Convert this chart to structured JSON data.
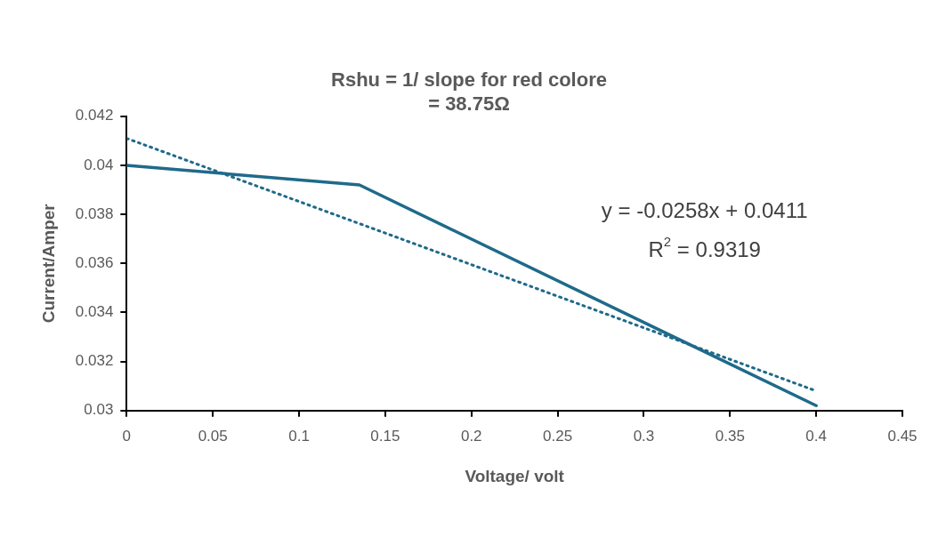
{
  "chart_data": {
    "type": "line",
    "title": "Rshu = 1/ slope for red colore\n= 38.75Ω",
    "xlabel": "Voltage/ volt",
    "ylabel": "Current/Amper",
    "x": [
      0,
      0.135,
      0.4
    ],
    "series": [
      {
        "color": "#1f6a8a",
        "values": [
          0.04,
          0.0392,
          0.0302
        ],
        "line_style": "solid"
      },
      {
        "type": "line",
        "x": [
          0,
          0.4
        ],
        "color": "#1f6a8a",
        "values": [
          0.0411,
          0.0308
        ],
        "line_style": "dotted"
      }
    ],
    "xlim": [
      0,
      0.45
    ],
    "xticks": [
      0,
      0.05,
      0.1,
      0.15,
      0.2,
      0.25,
      0.3,
      0.35,
      0.4,
      0.45
    ],
    "ylim": [
      0.03,
      0.042
    ],
    "yticks": [
      0.03,
      0.032,
      0.034,
      0.036,
      0.038,
      0.04,
      0.042
    ],
    "annotations": [
      "y = -0.0258x + 0.0411",
      "R$^{2}$ = 0.9319"
    ],
    "grid": false,
    "legend": false,
    "marker": "none"
  }
}
